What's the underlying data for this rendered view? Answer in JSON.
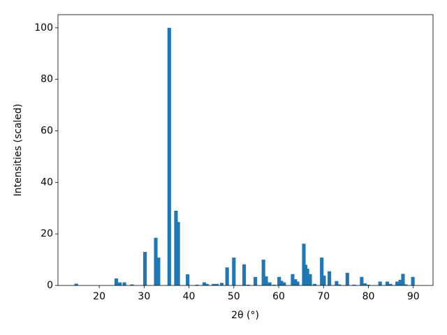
{
  "chart_data": {
    "type": "bar",
    "color": "#1f77b4",
    "x_label": "2θ (°)",
    "y_label": "Intensities (scaled)",
    "x": [
      14.87,
      23.8,
      24.6,
      25.6,
      27.3,
      30.2,
      32.6,
      33.2,
      35.6,
      37.1,
      37.6,
      39.7,
      41.8,
      43.4,
      44.0,
      45.5,
      46.2,
      47.3,
      48.5,
      50.0,
      52.3,
      53.2,
      54.8,
      56.6,
      57.2,
      58.0,
      59.0,
      60.1,
      60.6,
      61.2,
      63.1,
      63.7,
      64.2,
      65.6,
      66.0,
      66.4,
      67.0,
      68.0,
      69.6,
      70.1,
      71.3,
      72.9,
      73.5,
      75.3,
      76.8,
      78.5,
      79.2,
      80.0,
      82.6,
      84.2,
      84.9,
      86.4,
      87.1,
      87.7,
      88.3,
      89.9
    ],
    "values": [
      0.7,
      2.7,
      1.2,
      1.2,
      0.4,
      13,
      18.5,
      10.8,
      100,
      29,
      24.6,
      4.3,
      0.3,
      1.2,
      0.6,
      0.6,
      0.6,
      1,
      7,
      10.8,
      8.2,
      0.3,
      3.3,
      10,
      3.5,
      1.2,
      0.3,
      3.3,
      1.8,
      1.2,
      4.4,
      2.4,
      1.5,
      16.2,
      8,
      6.5,
      4.4,
      0.6,
      10.8,
      3.8,
      5.5,
      1.7,
      0.4,
      4.9,
      0.3,
      3.3,
      0.8,
      0.3,
      1.5,
      1.5,
      0.6,
      1.5,
      2.2,
      4.5,
      0.4,
      3.3
    ],
    "xlim": [
      10.8,
      94.4
    ],
    "xticks": [
      20,
      30,
      40,
      50,
      60,
      70,
      80,
      90
    ],
    "ylim": [
      0,
      105.1
    ],
    "yticks": [
      0,
      20,
      40,
      60,
      80,
      100
    ]
  }
}
